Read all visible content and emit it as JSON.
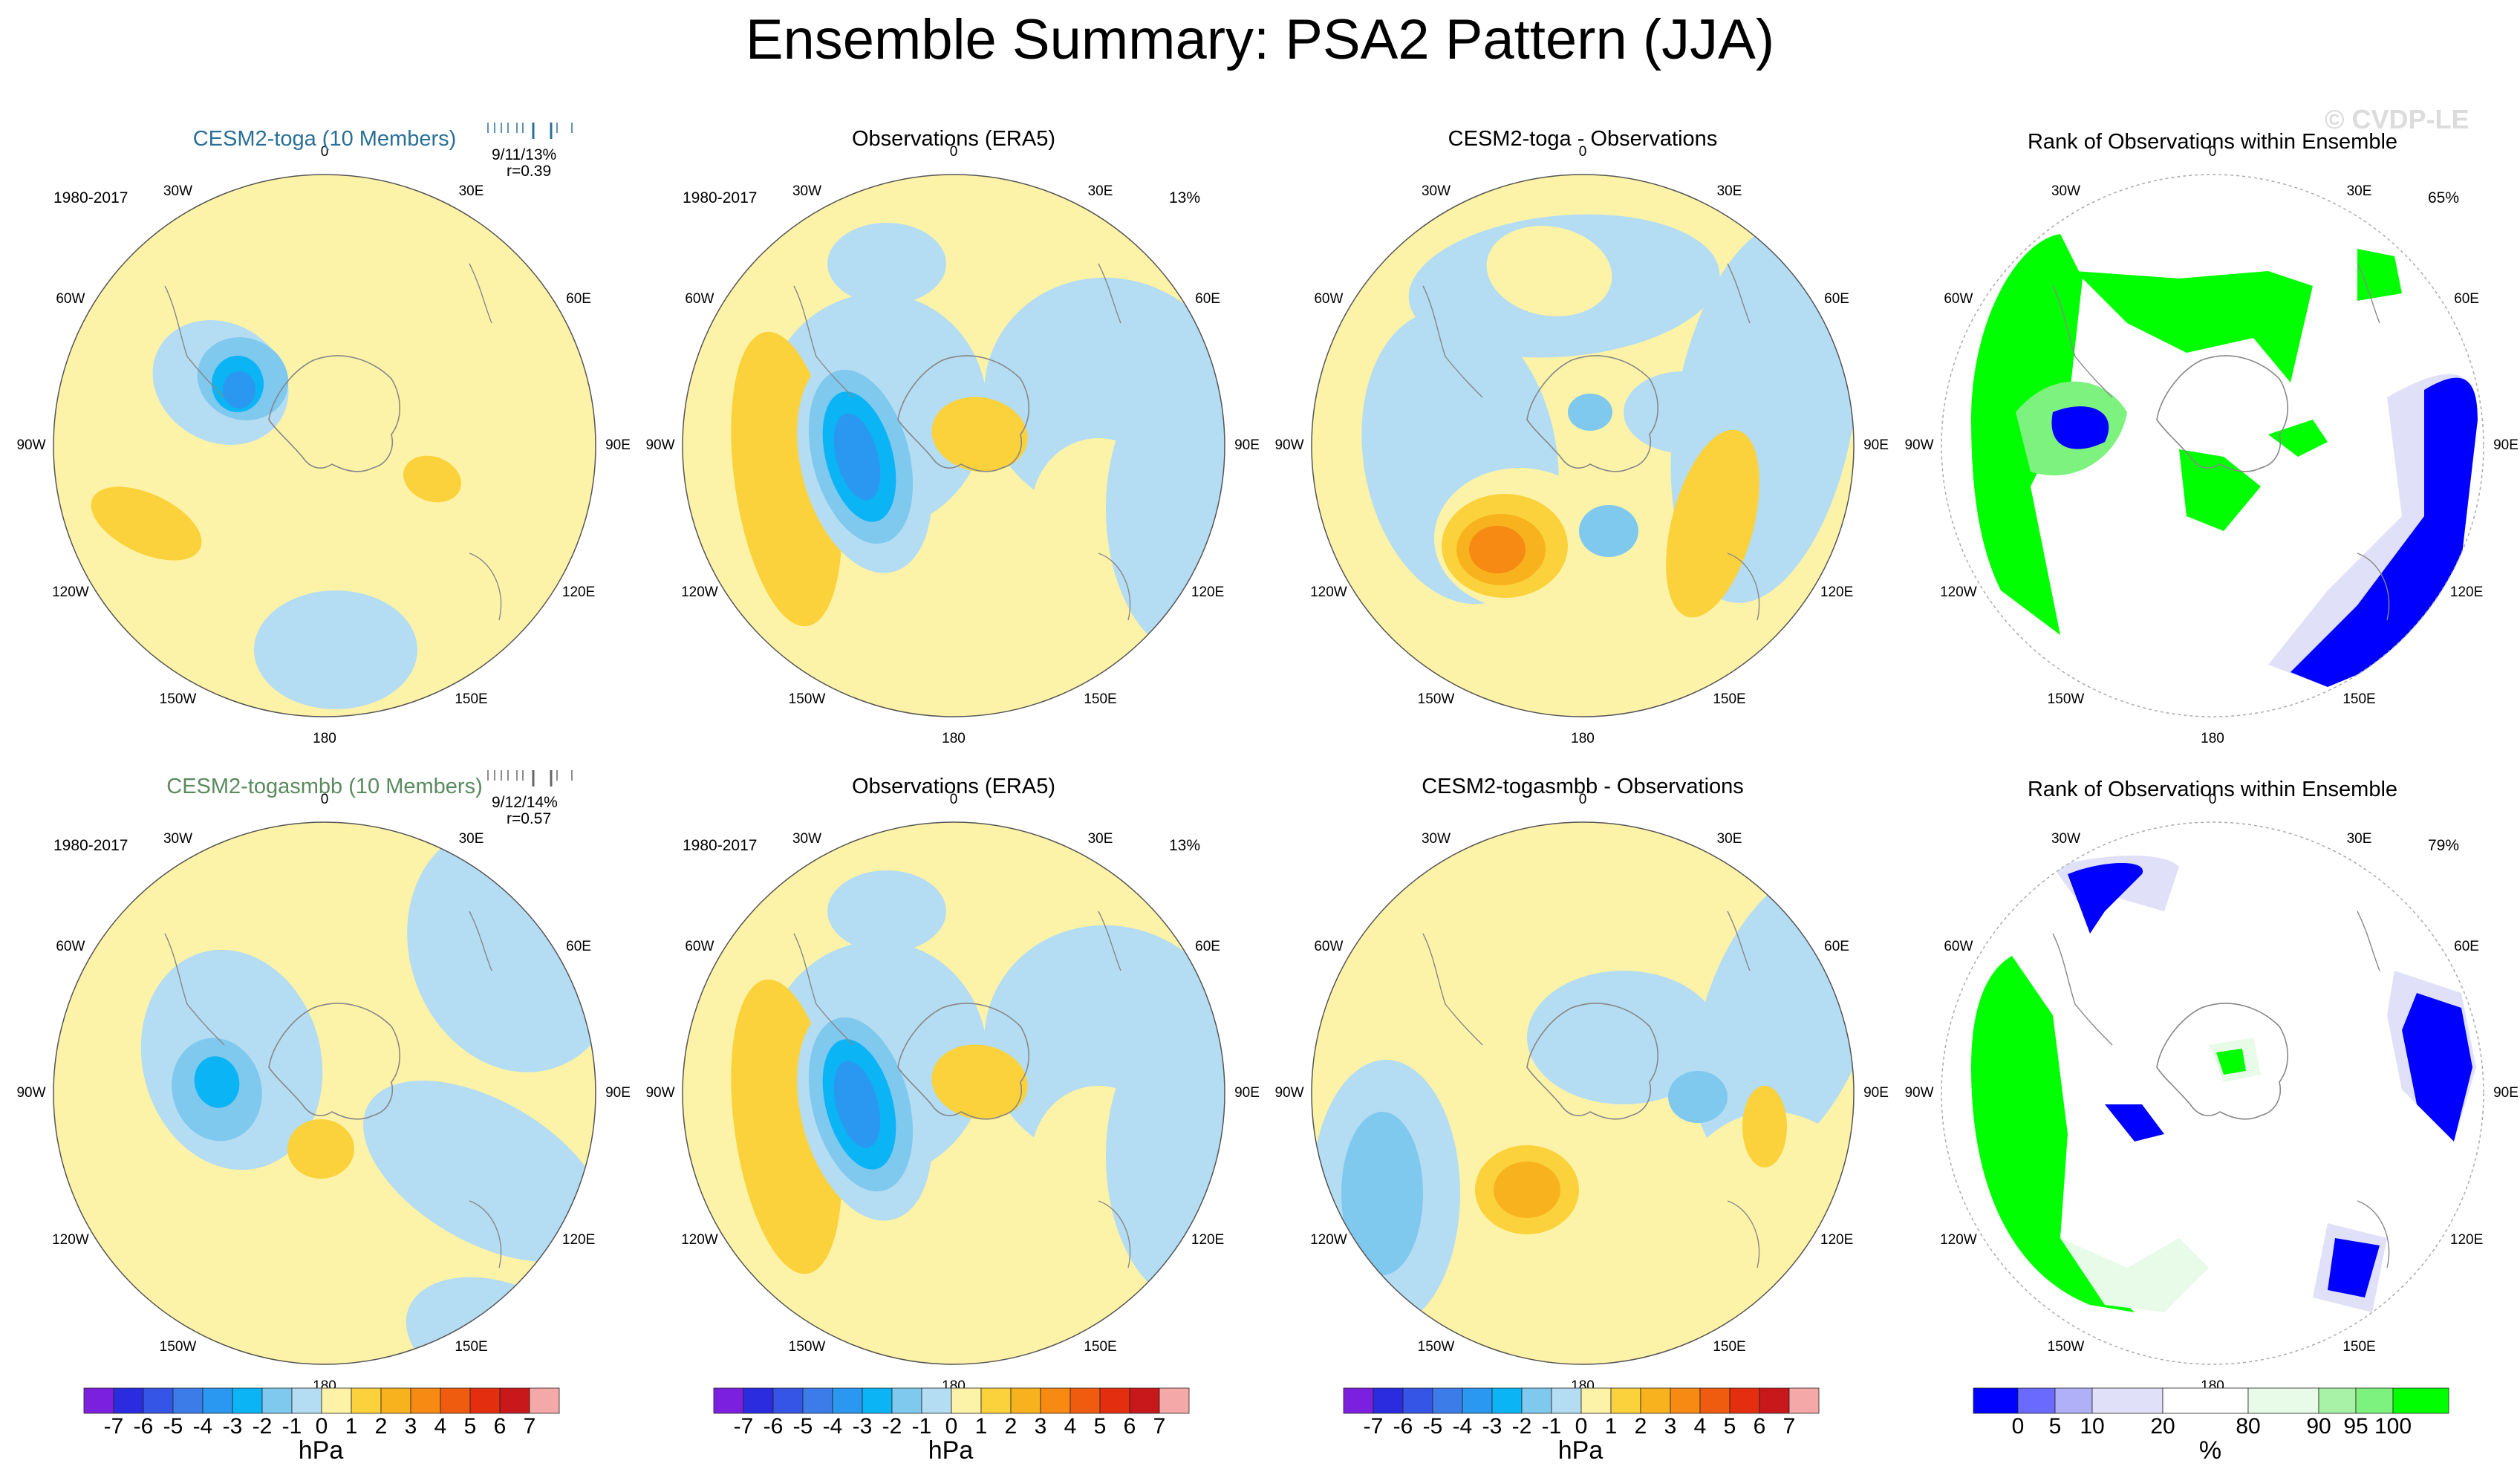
{
  "title": "Ensemble Summary: PSA2 Pattern (JJA)",
  "watermark": "© CVDP-LE",
  "colors": {
    "neg": [
      "#7c20e0",
      "#2b2be0",
      "#3555e6",
      "#3c7ce8",
      "#2a98f0",
      "#0bb4f4",
      "#7fc8ee",
      "#b4dcf2"
    ],
    "pos": [
      "#fdf3a8",
      "#fbd23c",
      "#f8b21e",
      "#f68a12",
      "#f05c0f",
      "#e42e10",
      "#c8181c",
      "#f4a8a8"
    ],
    "rank": [
      "#0000ff",
      "#6a6aff",
      "#b0b0f8",
      "#e0e0f8",
      "#ffffff",
      "#e8fbe8",
      "#a8f2a8",
      "#7ef27e",
      "#00ff00"
    ],
    "model1_title_color": "#2a6f98",
    "model2_title_color": "#5a8a5e"
  },
  "lon_labels": [
    "0",
    "30E",
    "60E",
    "90E",
    "120E",
    "150E",
    "180",
    "150W",
    "120W",
    "90W",
    "60W",
    "30W"
  ],
  "rows": [
    {
      "model_title": "CESM2-toga (10 Members)",
      "obs_title": "Observations (ERA5)",
      "diff_title": "CESM2-toga - Observations",
      "rank_title": "Rank of Observations within Ensemble",
      "period": "1980-2017",
      "stats": "9/11/13%",
      "corr": "r=0.39",
      "obs_pct": "13%",
      "rank_pct": "65%"
    },
    {
      "model_title": "CESM2-togasmbb (10 Members)",
      "obs_title": "Observations (ERA5)",
      "diff_title": "CESM2-togasmbb - Observations",
      "rank_title": "Rank of Observations within Ensemble",
      "period": "1980-2017",
      "stats": "9/12/14%",
      "corr": "r=0.57",
      "obs_pct": "13%",
      "rank_pct": "79%"
    }
  ],
  "colorbar_hpa": {
    "labels": [
      "-7",
      "-6",
      "-5",
      "-4",
      "-3",
      "-2",
      "-1",
      "0",
      "1",
      "2",
      "3",
      "4",
      "5",
      "6",
      "7"
    ],
    "unit": "hPa"
  },
  "colorbar_rank": {
    "labels": [
      "0",
      "5",
      "10",
      "20",
      "80",
      "90",
      "95",
      "100"
    ],
    "unit": "%"
  }
}
